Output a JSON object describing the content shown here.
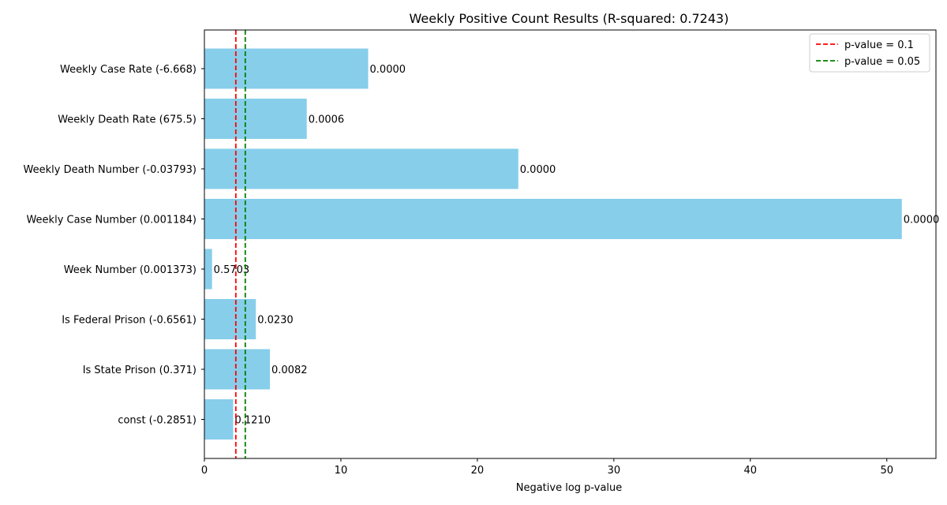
{
  "chart_data": {
    "type": "bar",
    "orientation": "horizontal",
    "title": "Weekly Positive Count Results (R-squared: 0.7243)",
    "xlabel": "Negative log p-value",
    "ylabel": "",
    "xlim": [
      0,
      53.6
    ],
    "xticks": [
      0,
      10,
      20,
      30,
      40,
      50
    ],
    "grid": false,
    "legend_position": "top-right",
    "bar_color": "#87ceeb",
    "categories": [
      "Weekly Case Rate (-6.668)",
      "Weekly Death Rate (675.5)",
      "Weekly Death Number (-0.03793)",
      "Weekly Case Number (0.001184)",
      "Week Number (0.001373)",
      "Is Federal Prison (-0.6561)",
      "Is State Prison (0.371)",
      "const (-0.2851)"
    ],
    "values": [
      12.0,
      7.5,
      23.0,
      51.1,
      0.56,
      3.77,
      4.8,
      2.11
    ],
    "data_labels": [
      "0.0000",
      "0.0006",
      "0.0000",
      "0.0000",
      "0.5703",
      "0.0230",
      "0.0082",
      "0.1210"
    ],
    "reference_lines": [
      {
        "name": "p-value = 0.1",
        "x": 2.3026,
        "color": "#ff0000",
        "style": "dashed"
      },
      {
        "name": "p-value = 0.05",
        "x": 2.9957,
        "color": "#008000",
        "style": "dashed"
      }
    ]
  }
}
